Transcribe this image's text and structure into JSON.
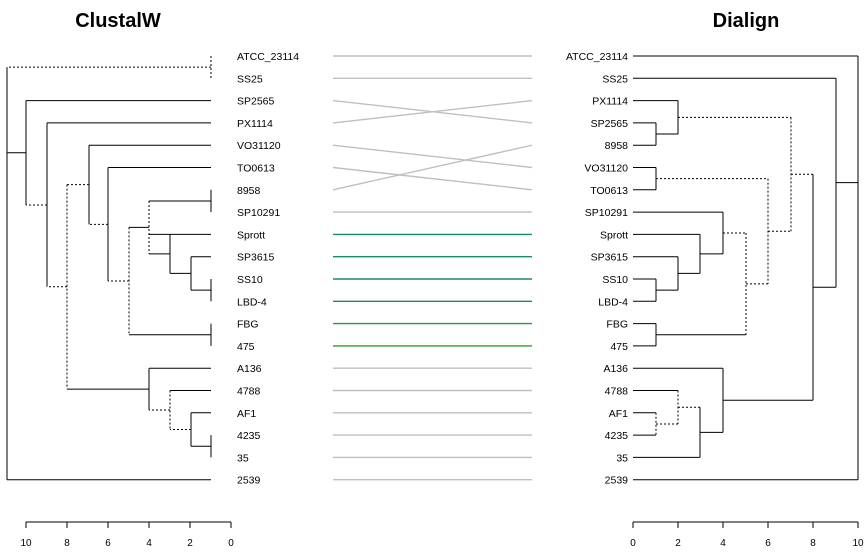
{
  "left_tree": {
    "title": "ClustalW",
    "labels": [
      "ATCC_23114",
      "SS25",
      "SP2565",
      "PX1114",
      "VO31120",
      "TO0613",
      "8958",
      "SP10291",
      "Sprott",
      "SP3615",
      "SS10",
      "LBD-4",
      "FBG",
      "475",
      "A136",
      "4788",
      "AF1",
      "4235",
      "35",
      "2539"
    ],
    "axis_ticks": [
      "10",
      "8",
      "6",
      "4",
      "2",
      "0"
    ]
  },
  "right_tree": {
    "title": "Dialign",
    "labels": [
      "ATCC_23114",
      "SS25",
      "PX1114",
      "SP2565",
      "8958",
      "VO31120",
      "TO0613",
      "SP10291",
      "Sprott",
      "SP3615",
      "SS10",
      "LBD-4",
      "FBG",
      "475",
      "A136",
      "4788",
      "AF1",
      "4235",
      "35",
      "2539"
    ],
    "axis_ticks": [
      "0",
      "2",
      "4",
      "6",
      "8",
      "10"
    ]
  },
  "connections": [
    {
      "left": "ATCC_23114",
      "right": "ATCC_23114",
      "color": "#bfbfbf"
    },
    {
      "left": "SS25",
      "right": "SS25",
      "color": "#bfbfbf"
    },
    {
      "left": "SP2565",
      "right": "SP2565",
      "color": "#bfbfbf"
    },
    {
      "left": "PX1114",
      "right": "PX1114",
      "color": "#bfbfbf"
    },
    {
      "left": "VO31120",
      "right": "VO31120",
      "color": "#bfbfbf"
    },
    {
      "left": "TO0613",
      "right": "TO0613",
      "color": "#bfbfbf"
    },
    {
      "left": "8958",
      "right": "8958",
      "color": "#bfbfbf"
    },
    {
      "left": "SP10291",
      "right": "SP10291",
      "color": "#bfbfbf"
    },
    {
      "left": "Sprott",
      "right": "Sprott",
      "color": "#1a8a6a"
    },
    {
      "left": "SP3615",
      "right": "SP3615",
      "color": "#1a8a6a"
    },
    {
      "left": "SS10",
      "right": "SS10",
      "color": "#1a8a6a"
    },
    {
      "left": "LBD-4",
      "right": "LBD-4",
      "color": "#1a8a6a"
    },
    {
      "left": "FBG",
      "right": "FBG",
      "color": "#2e9a2e"
    },
    {
      "left": "475",
      "right": "475",
      "color": "#2e9a2e"
    },
    {
      "left": "A136",
      "right": "A136",
      "color": "#bfbfbf"
    },
    {
      "left": "4788",
      "right": "4788",
      "color": "#bfbfbf"
    },
    {
      "left": "AF1",
      "right": "AF1",
      "color": "#bfbfbf"
    },
    {
      "left": "4235",
      "right": "4235",
      "color": "#bfbfbf"
    },
    {
      "left": "35",
      "right": "35",
      "color": "#bfbfbf"
    },
    {
      "left": "2539",
      "right": "2539",
      "color": "#bfbfbf"
    }
  ],
  "colors": {
    "unchanged_link": "#bfbfbf",
    "cluster_link_teal": "#1a8a6a",
    "cluster_link_green": "#2e9a2e",
    "branch": "#000000"
  }
}
